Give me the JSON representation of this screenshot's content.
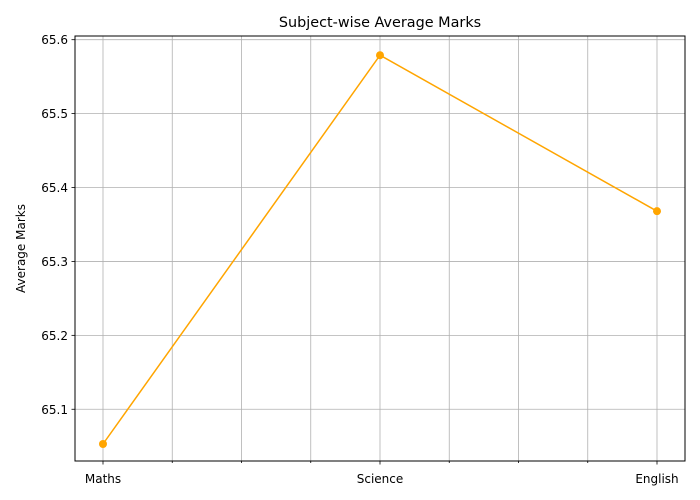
{
  "chart_data": {
    "type": "line",
    "title": "Subject-wise Average Marks",
    "xlabel": "",
    "ylabel": "Average Marks",
    "categories": [
      "Maths",
      "Science",
      "English"
    ],
    "values": [
      65.053,
      65.579,
      65.368
    ],
    "ylim": [
      65.03,
      65.605
    ],
    "yticks": [
      65.1,
      65.2,
      65.3,
      65.4,
      65.5,
      65.6
    ],
    "ytick_labels": [
      "65.1",
      "65.2",
      "65.3",
      "65.4",
      "65.5",
      "65.6"
    ],
    "minor_x_ticks_between": 3,
    "grid": true,
    "marker": "circle",
    "line_color": "#ffa500",
    "grid_color": "#b0b0b0"
  }
}
